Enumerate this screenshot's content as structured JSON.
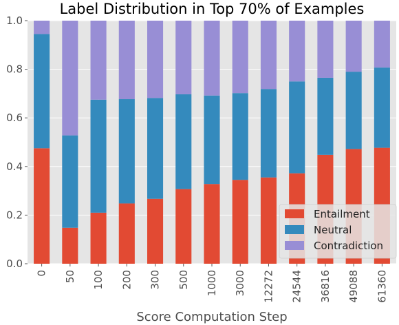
{
  "chart_data": {
    "type": "bar",
    "stacked": true,
    "title": "Label Distribution in Top 70% of Examples",
    "xlabel": "Score Computation Step",
    "ylabel": "",
    "ylim": [
      0,
      1.0
    ],
    "yticks": [
      "0.0",
      "0.2",
      "0.4",
      "0.6",
      "0.8",
      "1.0"
    ],
    "grid": true,
    "legend_position": "lower-right",
    "categories": [
      "0",
      "50",
      "100",
      "200",
      "300",
      "500",
      "1000",
      "3000",
      "12272",
      "24544",
      "36816",
      "49088",
      "61360"
    ],
    "series": [
      {
        "name": "Entailment",
        "color": "#E24A33",
        "values": [
          0.475,
          0.148,
          0.21,
          0.248,
          0.267,
          0.307,
          0.328,
          0.345,
          0.355,
          0.372,
          0.448,
          0.472,
          0.477
        ]
      },
      {
        "name": "Neutral",
        "color": "#348ABD",
        "values": [
          0.47,
          0.38,
          0.465,
          0.429,
          0.415,
          0.39,
          0.364,
          0.357,
          0.364,
          0.378,
          0.317,
          0.318,
          0.33
        ]
      },
      {
        "name": "Contradiction",
        "color": "#988ED5",
        "values": [
          0.055,
          0.472,
          0.325,
          0.323,
          0.318,
          0.303,
          0.308,
          0.298,
          0.281,
          0.25,
          0.235,
          0.21,
          0.193
        ]
      }
    ]
  }
}
